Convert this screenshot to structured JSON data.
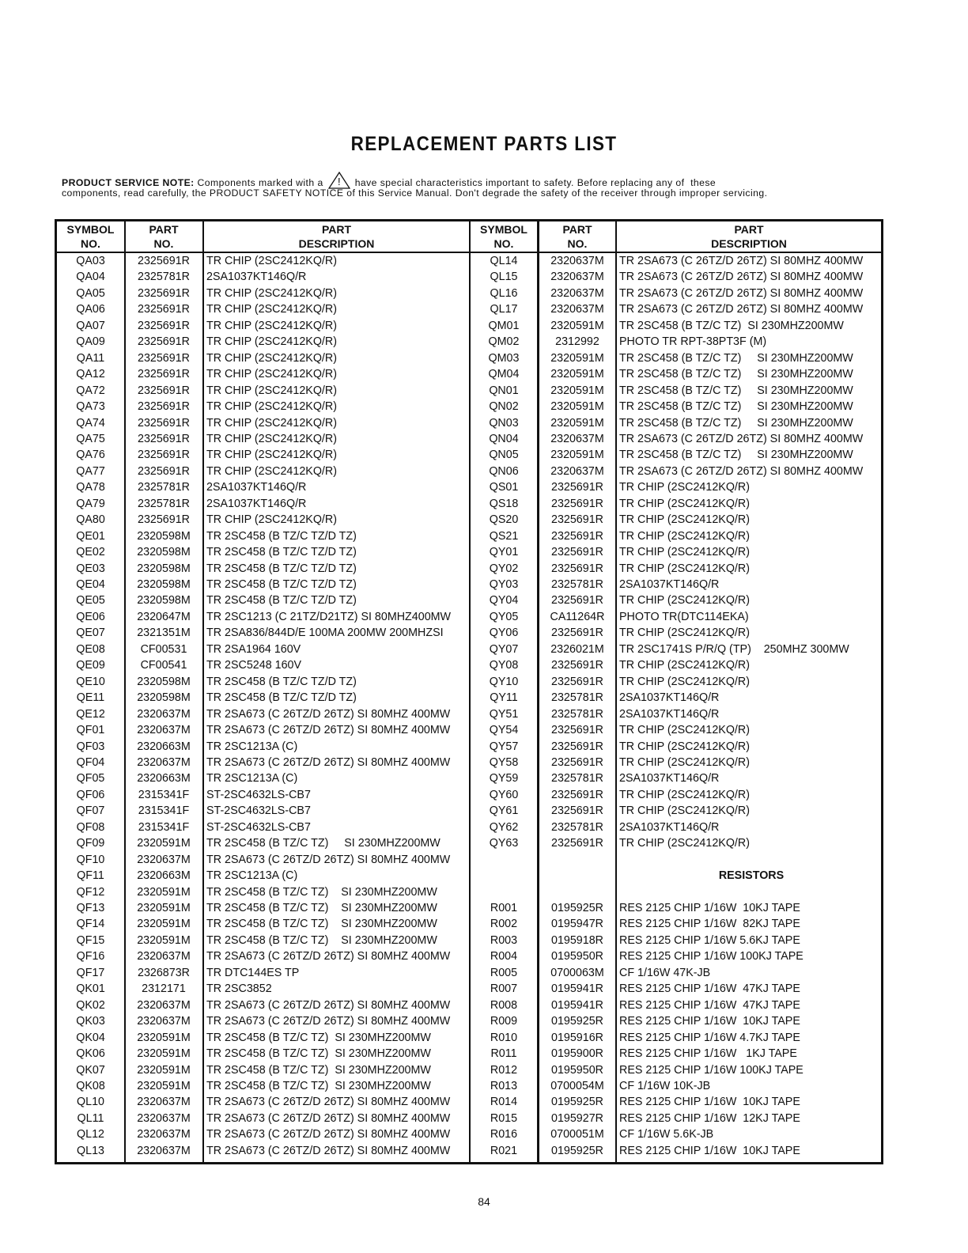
{
  "title": "REPLACEMENT PARTS LIST",
  "note": {
    "label": "PRODUCT SERVICE NOTE:",
    "text_before_icon": "Components marked with a",
    "icon": "warning-triangle-icon",
    "text_after_icon": "have special characteristics important to safety. Before replacing any of  these",
    "line2": "components, read carefully, the PRODUCT SAFETY NOTICE of this Service Manual. Don't degrade the safety of the receiver through improper servicing."
  },
  "headers": {
    "symbol": [
      "SYMBOL",
      "NO."
    ],
    "part": [
      "PART",
      "NO."
    ],
    "desc": [
      "PART",
      "DESCRIPTION"
    ]
  },
  "left_rows": [
    [
      "QA03",
      "2325691R",
      "TR CHIP (2SC2412KQ/R)"
    ],
    [
      "QA04",
      "2325781R",
      "2SA1037KT146Q/R"
    ],
    [
      "QA05",
      "2325691R",
      "TR CHIP (2SC2412KQ/R)"
    ],
    [
      "QA06",
      "2325691R",
      "TR CHIP (2SC2412KQ/R)"
    ],
    [
      "QA07",
      "2325691R",
      "TR CHIP (2SC2412KQ/R)"
    ],
    [
      "QA09",
      "2325691R",
      "TR CHIP (2SC2412KQ/R)"
    ],
    [
      "QA11",
      "2325691R",
      "TR CHIP (2SC2412KQ/R)"
    ],
    [
      "QA12",
      "2325691R",
      "TR CHIP (2SC2412KQ/R)"
    ],
    [
      "QA72",
      "2325691R",
      "TR CHIP (2SC2412KQ/R)"
    ],
    [
      "QA73",
      "2325691R",
      "TR CHIP (2SC2412KQ/R)"
    ],
    [
      "QA74",
      "2325691R",
      "TR CHIP (2SC2412KQ/R)"
    ],
    [
      "QA75",
      "2325691R",
      "TR CHIP (2SC2412KQ/R)"
    ],
    [
      "QA76",
      "2325691R",
      "TR CHIP (2SC2412KQ/R)"
    ],
    [
      "QA77",
      "2325691R",
      "TR CHIP (2SC2412KQ/R)"
    ],
    [
      "QA78",
      "2325781R",
      "2SA1037KT146Q/R"
    ],
    [
      "QA79",
      "2325781R",
      "2SA1037KT146Q/R"
    ],
    [
      "QA80",
      "2325691R",
      "TR CHIP (2SC2412KQ/R)"
    ],
    [
      "QE01",
      "2320598M",
      "TR 2SC458 (B TZ/C TZ/D TZ)"
    ],
    [
      "QE02",
      "2320598M",
      "TR 2SC458 (B TZ/C TZ/D TZ)"
    ],
    [
      "QE03",
      "2320598M",
      "TR 2SC458 (B TZ/C TZ/D TZ)"
    ],
    [
      "QE04",
      "2320598M",
      "TR 2SC458 (B TZ/C TZ/D TZ)"
    ],
    [
      "QE05",
      "2320598M",
      "TR 2SC458 (B TZ/C TZ/D TZ)"
    ],
    [
      "QE06",
      "2320647M",
      "TR 2SC1213 (C 21TZ/D21TZ) SI 80MHZ400MW"
    ],
    [
      "QE07",
      "2321351M",
      "TR 2SA836/844D/E 100MA 200MW 200MHZSI"
    ],
    [
      "QE08",
      "CF00531",
      "TR 2SA1964 160V"
    ],
    [
      "QE09",
      "CF00541",
      "TR 2SC5248 160V"
    ],
    [
      "QE10",
      "2320598M",
      "TR 2SC458 (B TZ/C TZ/D TZ)"
    ],
    [
      "QE11",
      "2320598M",
      "TR 2SC458 (B TZ/C TZ/D TZ)"
    ],
    [
      "QE12",
      "2320637M",
      "TR 2SA673 (C 26TZ/D 26TZ) SI 80MHZ 400MW"
    ],
    [
      "QF01",
      "2320637M",
      "TR 2SA673 (C 26TZ/D 26TZ) SI 80MHZ 400MW"
    ],
    [
      "QF03",
      "2320663M",
      "TR 2SC1213A (C)"
    ],
    [
      "QF04",
      "2320637M",
      "TR 2SA673 (C 26TZ/D 26TZ) SI 80MHZ 400MW"
    ],
    [
      "QF05",
      "2320663M",
      "TR 2SC1213A (C)"
    ],
    [
      "QF06",
      "2315341F",
      "ST-2SC4632LS-CB7"
    ],
    [
      "QF07",
      "2315341F",
      "ST-2SC4632LS-CB7"
    ],
    [
      "QF08",
      "2315341F",
      "ST-2SC4632LS-CB7"
    ],
    [
      "QF09",
      "2320591M",
      "TR 2SC458 (B TZ/C TZ)     SI 230MHZ200MW"
    ],
    [
      "QF10",
      "2320637M",
      "TR 2SA673 (C 26TZ/D 26TZ) SI 80MHZ 400MW"
    ],
    [
      "QF11",
      "2320663M",
      "TR 2SC1213A (C)"
    ],
    [
      "QF12",
      "2320591M",
      "TR 2SC458 (B TZ/C TZ)    SI 230MHZ200MW"
    ],
    [
      "QF13",
      "2320591M",
      "TR 2SC458 (B TZ/C TZ)    SI 230MHZ200MW"
    ],
    [
      "QF14",
      "2320591M",
      "TR 2SC458 (B TZ/C TZ)    SI 230MHZ200MW"
    ],
    [
      "QF15",
      "2320591M",
      "TR 2SC458 (B TZ/C TZ)    SI 230MHZ200MW"
    ],
    [
      "QF16",
      "2320637M",
      "TR 2SA673 (C 26TZ/D 26TZ) SI 80MHZ 400MW"
    ],
    [
      "QF17",
      "2326873R",
      "TR DTC144ES TP"
    ],
    [
      "QK01",
      "2312171",
      "TR 2SC3852"
    ],
    [
      "QK02",
      "2320637M",
      "TR 2SA673 (C 26TZ/D 26TZ) SI 80MHZ 400MW"
    ],
    [
      "QK03",
      "2320637M",
      "TR 2SA673 (C 26TZ/D 26TZ) SI 80MHZ 400MW"
    ],
    [
      "QK04",
      "2320591M",
      "TR 2SC458 (B TZ/C TZ)  SI 230MHZ200MW"
    ],
    [
      "QK06",
      "2320591M",
      "TR 2SC458 (B TZ/C TZ)  SI 230MHZ200MW"
    ],
    [
      "QK07",
      "2320591M",
      "TR 2SC458 (B TZ/C TZ)  SI 230MHZ200MW"
    ],
    [
      "QK08",
      "2320591M",
      "TR 2SC458 (B TZ/C TZ)  SI 230MHZ200MW"
    ],
    [
      "QL10",
      "2320637M",
      "TR 2SA673 (C 26TZ/D 26TZ) SI 80MHZ 400MW"
    ],
    [
      "QL11",
      "2320637M",
      "TR 2SA673 (C 26TZ/D 26TZ) SI 80MHZ 400MW"
    ],
    [
      "QL12",
      "2320637M",
      "TR 2SA673 (C 26TZ/D 26TZ) SI 80MHZ 400MW"
    ],
    [
      "QL13",
      "2320637M",
      "TR 2SA673 (C 26TZ/D 26TZ) SI 80MHZ 400MW"
    ]
  ],
  "right_rows": [
    [
      "QL14",
      "2320637M",
      "TR 2SA673 (C 26TZ/D 26TZ) SI 80MHZ 400MW"
    ],
    [
      "QL15",
      "2320637M",
      "TR 2SA673 (C 26TZ/D 26TZ) SI 80MHZ 400MW"
    ],
    [
      "QL16",
      "2320637M",
      "TR 2SA673 (C 26TZ/D 26TZ) SI 80MHZ 400MW"
    ],
    [
      "QL17",
      "2320637M",
      "TR 2SA673 (C 26TZ/D 26TZ) SI 80MHZ 400MW"
    ],
    [
      "QM01",
      "2320591M",
      "TR 2SC458 (B TZ/C TZ)  SI 230MHZ200MW"
    ],
    [
      "QM02",
      "2312992",
      "PHOTO TR RPT-38PT3F (M)"
    ],
    [
      "QM03",
      "2320591M",
      "TR 2SC458 (B TZ/C TZ)     SI 230MHZ200MW"
    ],
    [
      "QM04",
      "2320591M",
      "TR 2SC458 (B TZ/C TZ)     SI 230MHZ200MW"
    ],
    [
      "QN01",
      "2320591M",
      "TR 2SC458 (B TZ/C TZ)     SI 230MHZ200MW"
    ],
    [
      "QN02",
      "2320591M",
      "TR 2SC458 (B TZ/C TZ)     SI 230MHZ200MW"
    ],
    [
      "QN03",
      "2320591M",
      "TR 2SC458 (B TZ/C TZ)     SI 230MHZ200MW"
    ],
    [
      "QN04",
      "2320637M",
      "TR 2SA673 (C 26TZ/D 26TZ) SI 80MHZ 400MW"
    ],
    [
      "QN05",
      "2320591M",
      "TR 2SC458 (B TZ/C TZ)     SI 230MHZ200MW"
    ],
    [
      "QN06",
      "2320637M",
      "TR 2SA673 (C 26TZ/D 26TZ) SI 80MHZ 400MW"
    ],
    [
      "QS01",
      "2325691R",
      "TR CHIP (2SC2412KQ/R)"
    ],
    [
      "QS18",
      "2325691R",
      "TR CHIP (2SC2412KQ/R)"
    ],
    [
      "QS20",
      "2325691R",
      "TR CHIP (2SC2412KQ/R)"
    ],
    [
      "QS21",
      "2325691R",
      "TR CHIP (2SC2412KQ/R)"
    ],
    [
      "QY01",
      "2325691R",
      "TR CHIP (2SC2412KQ/R)"
    ],
    [
      "QY02",
      "2325691R",
      "TR CHIP (2SC2412KQ/R)"
    ],
    [
      "QY03",
      "2325781R",
      "2SA1037KT146Q/R"
    ],
    [
      "QY04",
      "2325691R",
      "TR CHIP (2SC2412KQ/R)"
    ],
    [
      "QY05",
      "CA11264R",
      "PHOTO TR(DTC114EKA)"
    ],
    [
      "QY06",
      "2325691R",
      "TR CHIP (2SC2412KQ/R)"
    ],
    [
      "QY07",
      "2326021M",
      "TR 2SC1741S P/R/Q (TP)    250MHZ 300MW"
    ],
    [
      "QY08",
      "2325691R",
      "TR CHIP (2SC2412KQ/R)"
    ],
    [
      "QY10",
      "2325691R",
      "TR CHIP (2SC2412KQ/R)"
    ],
    [
      "QY11",
      "2325781R",
      "2SA1037KT146Q/R"
    ],
    [
      "QY51",
      "2325781R",
      "2SA1037KT146Q/R"
    ],
    [
      "QY54",
      "2325691R",
      "TR CHIP (2SC2412KQ/R)"
    ],
    [
      "QY57",
      "2325691R",
      "TR CHIP (2SC2412KQ/R)"
    ],
    [
      "QY58",
      "2325691R",
      "TR CHIP (2SC2412KQ/R)"
    ],
    [
      "QY59",
      "2325781R",
      "2SA1037KT146Q/R"
    ],
    [
      "QY60",
      "2325691R",
      "TR CHIP (2SC2412KQ/R)"
    ],
    [
      "QY61",
      "2325691R",
      "TR CHIP (2SC2412KQ/R)"
    ],
    [
      "QY62",
      "2325781R",
      "2SA1037KT146Q/R"
    ],
    [
      "QY63",
      "2325691R",
      "TR CHIP (2SC2412KQ/R)"
    ],
    [
      "",
      "",
      ""
    ],
    [
      "",
      "",
      "RESISTORS",
      "section"
    ],
    [
      "",
      "",
      ""
    ],
    [
      "R001",
      "0195925R",
      "RES 2125 CHIP 1/16W  10KJ TAPE"
    ],
    [
      "R002",
      "0195947R",
      "RES 2125 CHIP 1/16W  82KJ TAPE"
    ],
    [
      "R003",
      "0195918R",
      "RES 2125 CHIP 1/16W 5.6KJ TAPE"
    ],
    [
      "R004",
      "0195950R",
      "RES 2125 CHIP 1/16W 100KJ TAPE"
    ],
    [
      "R005",
      "0700063M",
      "CF 1/16W 47K-JB"
    ],
    [
      "R007",
      "0195941R",
      "RES 2125 CHIP 1/16W  47KJ TAPE"
    ],
    [
      "R008",
      "0195941R",
      "RES 2125 CHIP 1/16W  47KJ TAPE"
    ],
    [
      "R009",
      "0195925R",
      "RES 2125 CHIP 1/16W  10KJ TAPE"
    ],
    [
      "R010",
      "0195916R",
      "RES 2125 CHIP 1/16W 4.7KJ TAPE"
    ],
    [
      "R011",
      "0195900R",
      "RES 2125 CHIP 1/16W   1KJ TAPE"
    ],
    [
      "R012",
      "0195950R",
      "RES 2125 CHIP 1/16W 100KJ TAPE"
    ],
    [
      "R013",
      "0700054M",
      "CF 1/16W 10K-JB"
    ],
    [
      "R014",
      "0195925R",
      "RES 2125 CHIP 1/16W  10KJ TAPE"
    ],
    [
      "R015",
      "0195927R",
      "RES 2125 CHIP 1/16W  12KJ TAPE"
    ],
    [
      "R016",
      "0700051M",
      "CF 1/16W 5.6K-JB"
    ],
    [
      "R021",
      "0195925R",
      "RES 2125 CHIP 1/16W  10KJ TAPE"
    ]
  ],
  "page_number": "84"
}
